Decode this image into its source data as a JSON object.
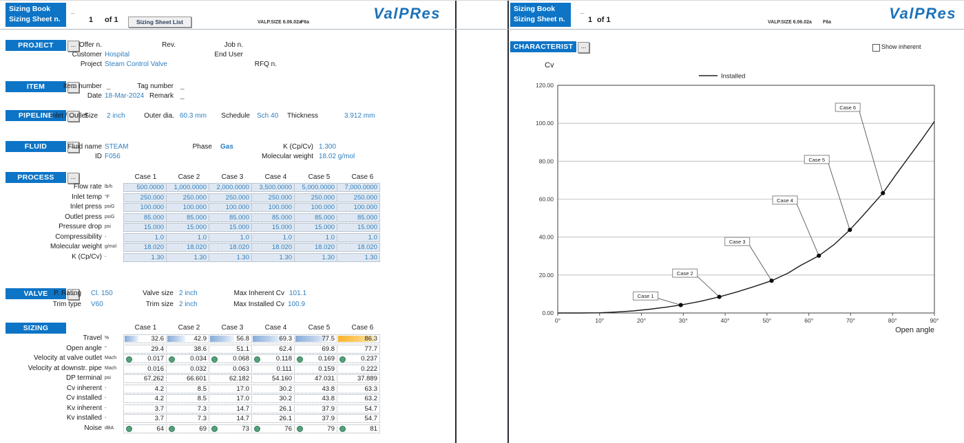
{
  "header": {
    "book_label": "Sizing Book",
    "sheet_label": "Sizing Sheet  n.",
    "dash": "_",
    "page_num": "1",
    "page_of": "of 1",
    "sheet_list_button": "Sizing Sheet List",
    "version": "VALP.SIZE 6.06.02a",
    "rev": "F6a",
    "logo_text": "ValPRes"
  },
  "project": {
    "title": "PROJECT",
    "offer_label": "Offer n.",
    "rev_label": "Rev.",
    "job_label": "Job n.",
    "customer_label": "Customer",
    "customer_value": "Hospital",
    "enduser_label": "End User",
    "project_label": "Project",
    "project_value": "Steam Control Valve",
    "rfq_label": "RFQ n."
  },
  "item": {
    "title": "ITEM",
    "item_number_label": "Item number",
    "item_number_value": "_",
    "tag_number_label": "Tag number",
    "tag_number_value": "_",
    "date_label": "Date",
    "date_value": "18-Mar-2024",
    "remark_label": "Remark",
    "remark_value": "_"
  },
  "pipeline": {
    "title": "PIPELINE",
    "inlet_outlet_label": "Inlet / Outlet",
    "size_label": "Size",
    "size_value": "2 inch",
    "outer_dia_label": "Outer dia.",
    "outer_dia_value": "60.3 mm",
    "schedule_label": "Schedule",
    "schedule_value": "Sch 40",
    "thickness_label": "Thickness",
    "thickness_value": "3.912 mm"
  },
  "fluid": {
    "title": "FLUID",
    "fluid_name_label": "Fluid name",
    "fluid_name_value": "STEAM",
    "phase_label": "Phase",
    "phase_value": "Gas",
    "k_label": "K (Cp/Cv)",
    "k_value": "1.300",
    "id_label": "ID",
    "id_value": "F056",
    "mw_label": "Molecular weight",
    "mw_value": "18.02 g/mol"
  },
  "process": {
    "title": "PROCESS",
    "case_headers": [
      "Case 1",
      "Case 2",
      "Case 3",
      "Case 4",
      "Case 5",
      "Case 6"
    ],
    "rows": [
      {
        "label": "Flow rate",
        "unit": "lb/h",
        "values": [
          "500.0000",
          "1,000.0000",
          "2,000.0000",
          "3,500.0000",
          "5,000.0000",
          "7,000.0000"
        ]
      },
      {
        "label": "Inlet temp",
        "unit": "°F",
        "values": [
          "250.000",
          "250.000",
          "250.000",
          "250.000",
          "250.000",
          "250.000"
        ]
      },
      {
        "label": "Inlet press",
        "unit": "psiG",
        "values": [
          "100.000",
          "100.000",
          "100.000",
          "100.000",
          "100.000",
          "100.000"
        ]
      },
      {
        "label": "Outlet press",
        "unit": "psiG",
        "values": [
          "85.000",
          "85.000",
          "85.000",
          "85.000",
          "85.000",
          "85.000"
        ]
      },
      {
        "label": "Pressure drop",
        "unit": "psi",
        "values": [
          "15.000",
          "15.000",
          "15.000",
          "15.000",
          "15.000",
          "15.000"
        ]
      },
      {
        "label": "Compressibility",
        "unit": "-",
        "values": [
          "1.0",
          "1.0",
          "1.0",
          "1.0",
          "1.0",
          "1.0"
        ]
      },
      {
        "label": "Molecular weight",
        "unit": "g/mol",
        "values": [
          "18.020",
          "18.020",
          "18.020",
          "18.020",
          "18.020",
          "18.020"
        ]
      },
      {
        "label": "K (Cp/Cv)",
        "unit": "-",
        "values": [
          "1.30",
          "1.30",
          "1.30",
          "1.30",
          "1.30",
          "1.30"
        ]
      }
    ]
  },
  "valve": {
    "title": "VALVE",
    "p_rating_label": "P. Rating",
    "p_rating_value": "Cl. 150",
    "valve_size_label": "Valve size",
    "valve_size_value": "2 inch",
    "max_inherent_label": "Max Inherent Cv",
    "max_inherent_value": "101.1",
    "trim_type_label": "Trim type",
    "trim_type_value": "V60",
    "trim_size_label": "Trim size",
    "trim_size_value": "2 inch",
    "max_installed_label": "Max Installed Cv",
    "max_installed_value": "100.9"
  },
  "sizing": {
    "title": "SIZING",
    "case_headers": [
      "Case 1",
      "Case 2",
      "Case 3",
      "Case 4",
      "Case 5",
      "Case 6"
    ],
    "rows": [
      {
        "label": "Travel",
        "unit": "%",
        "type": "bar",
        "values": [
          "32.6",
          "42.9",
          "56.8",
          "69.3",
          "77.5",
          "86.3"
        ],
        "bar_colors": [
          "blue",
          "blue",
          "blue",
          "blue",
          "blue",
          "orange"
        ]
      },
      {
        "label": "Open angle",
        "unit": "°",
        "type": "plain",
        "values": [
          "29.4",
          "38.6",
          "51.1",
          "62.4",
          "69.8",
          "77.7"
        ]
      },
      {
        "label": "Velocity at valve outlet",
        "unit": "Mach",
        "type": "dot",
        "values": [
          "0.017",
          "0.034",
          "0.068",
          "0.118",
          "0.169",
          "0.237"
        ]
      },
      {
        "label": "Velocity at downstr. pipe",
        "unit": "Mach",
        "type": "plain",
        "values": [
          "0.016",
          "0.032",
          "0.063",
          "0.111",
          "0.159",
          "0.222"
        ]
      },
      {
        "label": "DP terminal",
        "unit": "psi",
        "type": "plain",
        "values": [
          "67.262",
          "66.601",
          "62.182",
          "54.160",
          "47.031",
          "37.889"
        ]
      },
      {
        "label": "Cv inherent",
        "unit": "-",
        "type": "plain",
        "values": [
          "4.2",
          "8.5",
          "17.0",
          "30.2",
          "43.8",
          "63.3"
        ]
      },
      {
        "label": "Cv installed",
        "unit": "-",
        "type": "plain",
        "values": [
          "4.2",
          "8.5",
          "17.0",
          "30.2",
          "43.8",
          "63.2"
        ]
      },
      {
        "label": "Kv inherent",
        "unit": "-",
        "type": "plain",
        "values": [
          "3.7",
          "7.3",
          "14.7",
          "26.1",
          "37.9",
          "54.7"
        ]
      },
      {
        "label": "Kv installed",
        "unit": "-",
        "type": "plain",
        "values": [
          "3.7",
          "7.3",
          "14.7",
          "26.1",
          "37.9",
          "54.7"
        ]
      },
      {
        "label": "Noise",
        "unit": "dBA",
        "type": "dot",
        "values": [
          "64",
          "69",
          "73",
          "76",
          "79",
          "81"
        ]
      }
    ]
  },
  "characteristic": {
    "title": "CHARACTERIST",
    "show_inherent_label": "Show inherent"
  },
  "chart_data": {
    "type": "line",
    "title": "",
    "ylabel": "Cv",
    "xlabel": "Open angle",
    "xlim": [
      0,
      90
    ],
    "ylim": [
      0,
      120
    ],
    "x_tick_values": [
      0,
      10,
      20,
      30,
      40,
      50,
      60,
      70,
      80,
      90
    ],
    "x_ticks": [
      "0°",
      "10°",
      "20°",
      "30°",
      "40°",
      "50°",
      "60°",
      "70°",
      "80°",
      "90°"
    ],
    "y_tick_values": [
      0,
      20,
      40,
      60,
      80,
      100,
      120
    ],
    "y_ticks": [
      "0.00",
      "20.00",
      "40.00",
      "60.00",
      "80.00",
      "100.00",
      "120.00"
    ],
    "grid": "horizontal",
    "legend": [
      {
        "name": "Installed",
        "position": "top-center"
      }
    ],
    "series": [
      {
        "name": "Installed",
        "x": [
          0,
          5,
          10,
          14,
          18,
          22,
          26,
          29.4,
          34,
          38.6,
          43,
          47,
          51.1,
          55,
          58,
          62.4,
          66,
          69.8,
          73,
          77.7,
          81,
          84,
          87,
          90
        ],
        "y": [
          0,
          0,
          0.1,
          0.5,
          1.1,
          2.0,
          3.1,
          4.2,
          6.1,
          8.5,
          11.2,
          14.0,
          17.0,
          21.0,
          25.0,
          30.2,
          36.0,
          43.8,
          51.5,
          63.2,
          73.5,
          82.5,
          91.5,
          100.9
        ]
      }
    ],
    "points": [
      {
        "label": "Case 1",
        "x": 29.4,
        "y": 4.2,
        "label_pos": [
          21,
          9
        ]
      },
      {
        "label": "Case 2",
        "x": 38.6,
        "y": 8.5,
        "label_pos": [
          30.4,
          21
        ]
      },
      {
        "label": "Case 3",
        "x": 51.1,
        "y": 17.0,
        "label_pos": [
          42.9,
          37.7
        ]
      },
      {
        "label": "Case 4",
        "x": 62.4,
        "y": 30.2,
        "label_pos": [
          54.3,
          59.5
        ]
      },
      {
        "label": "Case 5",
        "x": 69.8,
        "y": 43.8,
        "label_pos": [
          61.9,
          80.9
        ]
      },
      {
        "label": "Case 6",
        "x": 77.7,
        "y": 63.2,
        "label_pos": [
          69.3,
          108.4
        ]
      }
    ]
  },
  "colors": {
    "header_blue": "#0d74c6",
    "value_blue": "#2e7fc0",
    "bar_blue": "#86abd9",
    "bar_orange": "#f9b42a",
    "dot_green": "#55a07c",
    "chart_line": "#1a1a1a"
  }
}
